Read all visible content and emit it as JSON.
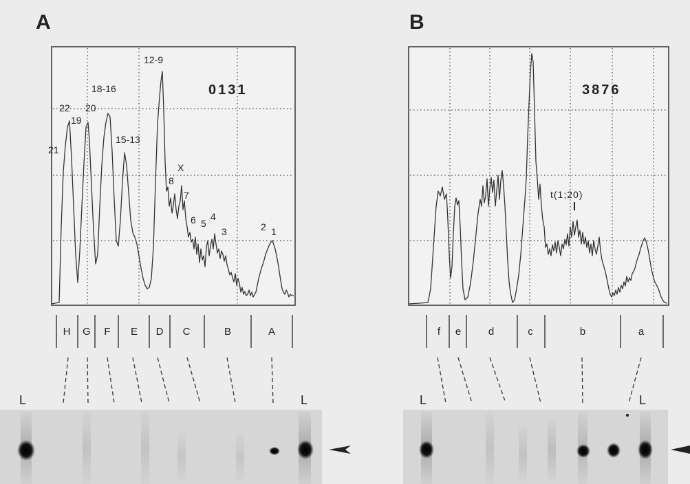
{
  "panels": [
    {
      "letter": "A",
      "id": "0131",
      "peak_labels": [
        "22",
        "19",
        "20",
        "18-16",
        "21",
        "15-13",
        "12-9",
        "X",
        "8",
        "7",
        "6",
        "5",
        "4",
        "3",
        "2",
        "1"
      ],
      "bands": [
        "H",
        "G",
        "F",
        "E",
        "D",
        "C",
        "B",
        "A"
      ],
      "lane_marker_left": "L",
      "lane_marker_right": "L"
    },
    {
      "letter": "B",
      "id": "3876",
      "annotation": "t(1;20)",
      "bands": [
        "f",
        "e",
        "d",
        "c",
        "b",
        "a"
      ],
      "lane_marker_left": "L",
      "lane_marker_right": "L"
    }
  ]
}
